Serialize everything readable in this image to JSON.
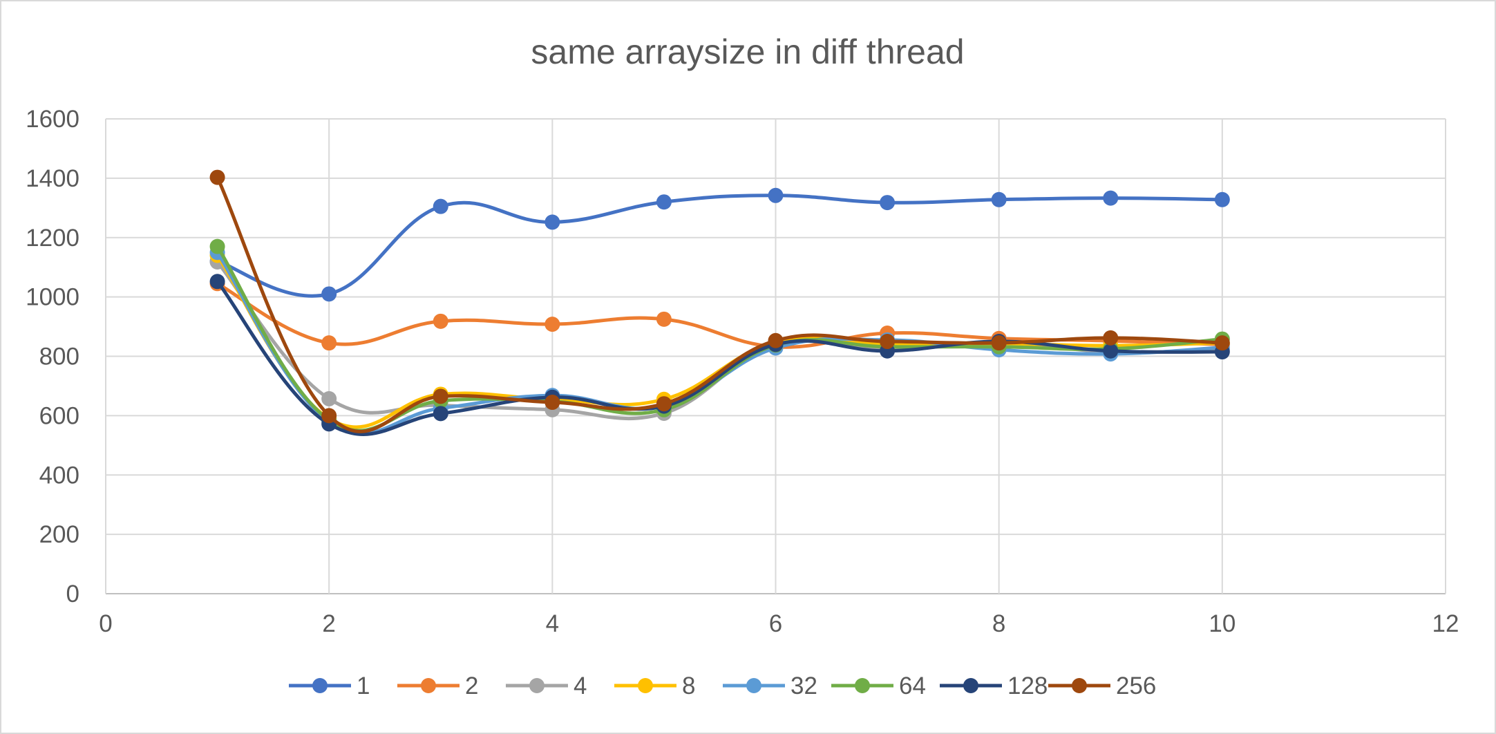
{
  "chart_data": {
    "type": "scatter",
    "title": "same arraysize in diff thread",
    "xlabel": "",
    "ylabel": "",
    "xlim": [
      0,
      12
    ],
    "ylim": [
      0,
      1600
    ],
    "x_ticks": [
      "0",
      "2",
      "4",
      "6",
      "8",
      "10",
      "12"
    ],
    "y_ticks": [
      "0",
      "200",
      "400",
      "600",
      "800",
      "1000",
      "1200",
      "1400",
      "1600"
    ],
    "grid": true,
    "legend_position": "bottom",
    "smooth_lines": true,
    "x": [
      1,
      2,
      3,
      4,
      5,
      6,
      7,
      8,
      9,
      10
    ],
    "series": [
      {
        "name": "1",
        "color": "#4472c4",
        "values": [
          1120,
          1010,
          1305,
          1252,
          1320,
          1342,
          1318,
          1328,
          1333,
          1328
        ]
      },
      {
        "name": "2",
        "color": "#ed7d31",
        "values": [
          1045,
          845,
          918,
          908,
          925,
          832,
          878,
          860,
          852,
          840
        ]
      },
      {
        "name": "4",
        "color": "#a5a5a5",
        "values": [
          1118,
          657,
          635,
          620,
          608,
          840,
          822,
          845,
          815,
          822
        ]
      },
      {
        "name": "8",
        "color": "#ffc000",
        "values": [
          1140,
          590,
          672,
          655,
          655,
          848,
          842,
          843,
          836,
          845
        ]
      },
      {
        "name": "32",
        "color": "#5b9bd5",
        "values": [
          1150,
          580,
          625,
          668,
          632,
          828,
          855,
          822,
          808,
          830
        ]
      },
      {
        "name": "64",
        "color": "#70ad47",
        "values": [
          1170,
          585,
          650,
          648,
          620,
          838,
          832,
          832,
          825,
          858
        ]
      },
      {
        "name": "128",
        "color": "#264478",
        "values": [
          1052,
          572,
          607,
          662,
          632,
          840,
          818,
          850,
          818,
          815
        ]
      },
      {
        "name": "256",
        "color": "#9e480e",
        "values": [
          1403,
          600,
          665,
          645,
          640,
          853,
          850,
          845,
          862,
          845
        ]
      }
    ]
  }
}
